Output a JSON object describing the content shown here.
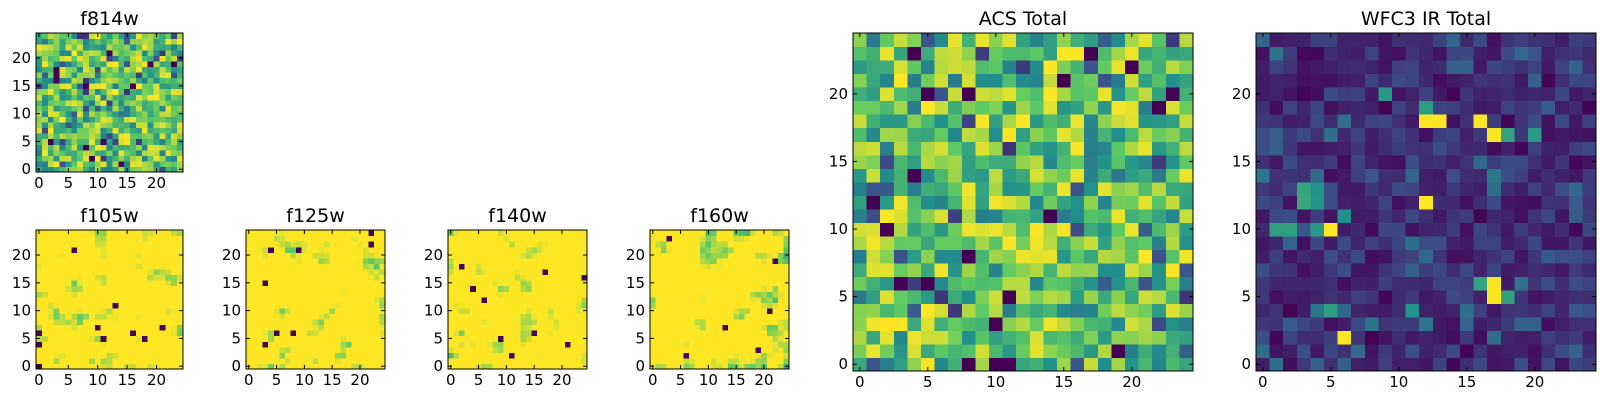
{
  "colormap": {
    "name": "viridis",
    "stops": [
      "#440154",
      "#3b528b",
      "#21918c",
      "#5ec962",
      "#fde725"
    ]
  },
  "chart_data": [
    {
      "id": "f814w",
      "type": "heatmap",
      "title": "f814w",
      "grid_size": 25,
      "xlim": [
        -0.5,
        24.5
      ],
      "ylim": [
        -0.5,
        24.5
      ],
      "xticks": [
        0,
        5,
        10,
        15,
        20
      ],
      "yticks": [
        0,
        5,
        10,
        15,
        20
      ],
      "grid": false,
      "seed": 11,
      "character": "noisy-bright"
    },
    {
      "id": "f105w",
      "type": "heatmap",
      "title": "f105w",
      "grid_size": 25,
      "xlim": [
        -0.5,
        24.5
      ],
      "ylim": [
        -0.5,
        24.5
      ],
      "xticks": [
        0,
        5,
        10,
        15,
        20
      ],
      "yticks": [
        0,
        5,
        10,
        15,
        20
      ],
      "grid": false,
      "seed": 23,
      "character": "smooth-bright"
    },
    {
      "id": "f125w",
      "type": "heatmap",
      "title": "f125w",
      "grid_size": 25,
      "xlim": [
        -0.5,
        24.5
      ],
      "ylim": [
        -0.5,
        24.5
      ],
      "xticks": [
        0,
        5,
        10,
        15,
        20
      ],
      "yticks": [
        0,
        5,
        10,
        15,
        20
      ],
      "grid": false,
      "seed": 37,
      "character": "smooth-bright"
    },
    {
      "id": "f140w",
      "type": "heatmap",
      "title": "f140w",
      "grid_size": 25,
      "xlim": [
        -0.5,
        24.5
      ],
      "ylim": [
        -0.5,
        24.5
      ],
      "xticks": [
        0,
        5,
        10,
        15,
        20
      ],
      "yticks": [
        0,
        5,
        10,
        15,
        20
      ],
      "grid": false,
      "seed": 41,
      "character": "smooth-bright"
    },
    {
      "id": "f160w",
      "type": "heatmap",
      "title": "f160w",
      "grid_size": 25,
      "xlim": [
        -0.5,
        24.5
      ],
      "ylim": [
        -0.5,
        24.5
      ],
      "xticks": [
        0,
        5,
        10,
        15,
        20
      ],
      "yticks": [
        0,
        5,
        10,
        15,
        20
      ],
      "grid": false,
      "seed": 53,
      "character": "smooth-bright"
    },
    {
      "id": "acs-total",
      "type": "heatmap",
      "title": "ACS Total",
      "grid_size": 25,
      "xlim": [
        -0.5,
        24.5
      ],
      "ylim": [
        -0.5,
        24.5
      ],
      "xticks": [
        0,
        5,
        10,
        15,
        20
      ],
      "yticks": [
        0,
        5,
        10,
        15,
        20
      ],
      "grid": false,
      "seed": 67,
      "character": "noisy-bright",
      "dark_pixels": [
        [
          8,
          20
        ],
        [
          15,
          21
        ],
        [
          23,
          20
        ],
        [
          4,
          14
        ],
        [
          2,
          10
        ],
        [
          8,
          8
        ],
        [
          5,
          6
        ],
        [
          19,
          1
        ],
        [
          11,
          5
        ]
      ],
      "bright_pixels": [
        [
          15,
          23
        ],
        [
          16,
          23
        ],
        [
          14,
          22
        ],
        [
          3,
          21
        ],
        [
          5,
          19
        ],
        [
          11,
          17
        ],
        [
          2,
          3
        ],
        [
          3,
          3
        ]
      ]
    },
    {
      "id": "wfc3-ir-total",
      "type": "heatmap",
      "title": "WFC3 IR Total",
      "grid_size": 25,
      "xlim": [
        -0.5,
        24.5
      ],
      "ylim": [
        -0.5,
        24.5
      ],
      "xticks": [
        0,
        5,
        10,
        15,
        20
      ],
      "yticks": [
        0,
        5,
        10,
        15,
        20
      ],
      "grid": false,
      "seed": 79,
      "character": "dark-sparse",
      "bright_pixels": [
        [
          16,
          18
        ],
        [
          17,
          17
        ],
        [
          12,
          18
        ],
        [
          13,
          18
        ],
        [
          12,
          12
        ],
        [
          5,
          10
        ],
        [
          17,
          6
        ],
        [
          17,
          5
        ],
        [
          6,
          2
        ]
      ],
      "mid_pixels": [
        [
          12,
          19
        ],
        [
          3,
          13
        ],
        [
          4,
          13
        ],
        [
          3,
          12
        ],
        [
          4,
          12
        ],
        [
          1,
          10
        ],
        [
          2,
          10
        ],
        [
          4,
          10
        ],
        [
          6,
          11
        ],
        [
          9,
          20
        ],
        [
          20,
          17
        ],
        [
          18,
          17
        ],
        [
          16,
          6
        ],
        [
          18,
          5
        ],
        [
          11,
          4
        ],
        [
          5,
          4
        ]
      ]
    }
  ]
}
